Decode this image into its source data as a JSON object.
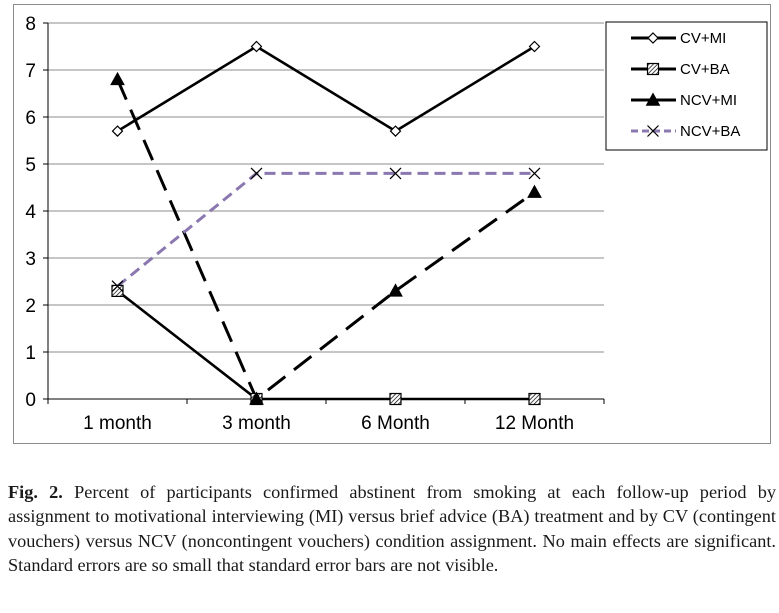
{
  "caption": {
    "label": "Fig. 2.",
    "text": "Percent of participants confirmed abstinent from smoking at each follow-up period by assignment to motivational interviewing (MI) versus brief advice (BA) treatment and by CV (contingent vouchers) versus NCV (noncontingent vouchers) condition assignment. No main effects are significant. Standard errors are so small that standard error bars are not visible."
  },
  "chart_data": {
    "type": "line",
    "categories": [
      "1 month",
      "3 month",
      "6 Month",
      "12 Month"
    ],
    "ylim": [
      0,
      8
    ],
    "yticks": [
      "0",
      "1",
      "2",
      "3",
      "4",
      "5",
      "6",
      "7",
      "8"
    ],
    "grid": {
      "horizontal": true,
      "vertical": false
    },
    "legend_position": "top-right",
    "series": [
      {
        "name": "CV+MI",
        "values": [
          5.7,
          7.5,
          5.7,
          7.5
        ],
        "line": "solid",
        "color": "#000000",
        "marker": "diamond"
      },
      {
        "name": "CV+BA",
        "values": [
          2.3,
          0.0,
          0.0,
          0.0
        ],
        "line": "solid",
        "color": "#000000",
        "marker": "hatched-square"
      },
      {
        "name": "NCV+MI",
        "values": [
          6.8,
          0.0,
          2.3,
          4.4
        ],
        "line": "dashed",
        "color": "#000000",
        "marker": "triangle"
      },
      {
        "name": "NCV+BA",
        "values": [
          2.4,
          4.8,
          4.8,
          4.8
        ],
        "line": "dashed",
        "color": "#8b78b0",
        "marker": "x"
      }
    ]
  }
}
